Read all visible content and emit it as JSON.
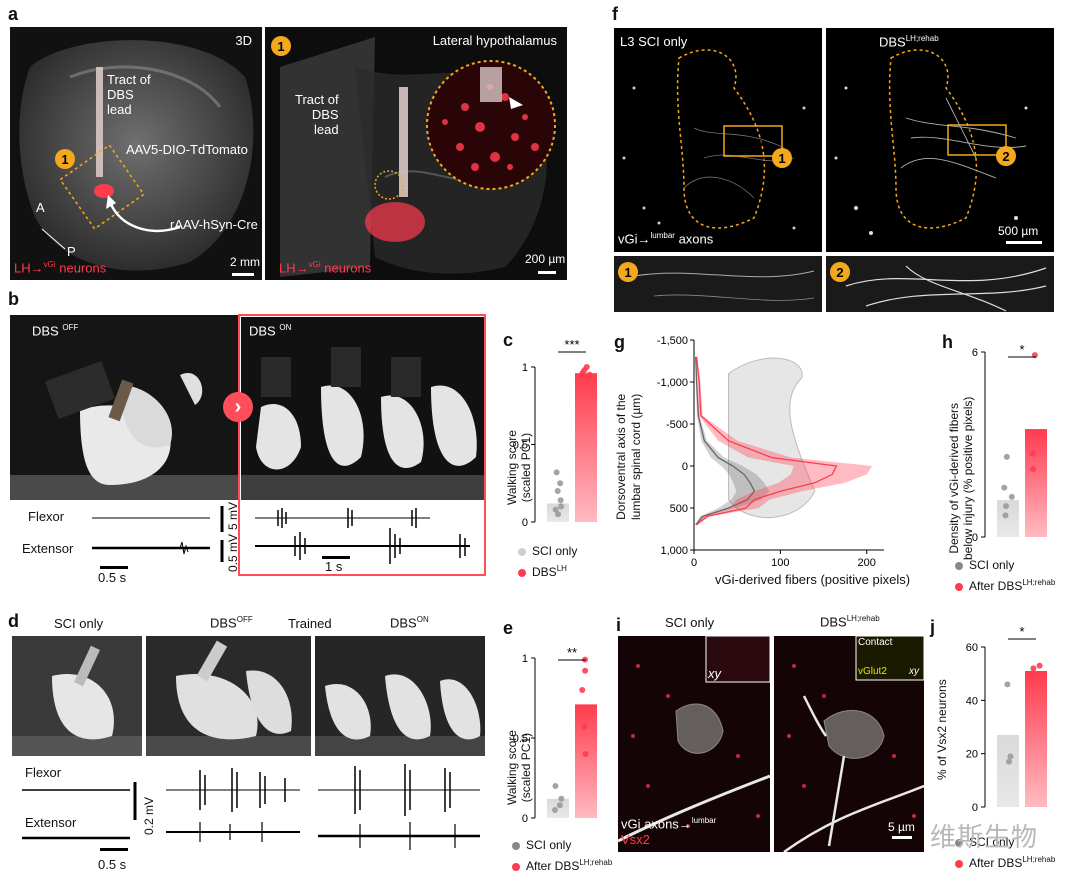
{
  "panels": {
    "a": {
      "letter": "a",
      "left": {
        "label_3d": "3D",
        "tract": "Tract of\nDBS\nlead",
        "aav": "AAV5-DIO-TdTomato",
        "rAAV": "rAAV-hSyn-Cre",
        "axis_a": "A",
        "axis_p": "P",
        "neurons": "LH→",
        "neurons_sup": "vGi",
        "neurons_tail": " neurons",
        "scale": "2 mm",
        "badge": "1"
      },
      "right": {
        "title": "Lateral hypothalamus",
        "tract": "Tract of\nDBS\nlead",
        "neurons": "LH→",
        "neurons_sup": "vGi",
        "neurons_tail": " neurons",
        "scale": "200 µm",
        "badge": "1"
      }
    },
    "b": {
      "letter": "b",
      "dbs_off": "DBS",
      "dbs_off_sup": "OFF",
      "dbs_on": "DBS",
      "dbs_on_sup": "ON",
      "flexor": "Flexor",
      "extensor": "Extensor",
      "scale_t1": "0.5 s",
      "scale_t2": "1 s",
      "scale_v1": "5 mV",
      "scale_v2": "0.5 mV"
    },
    "c": {
      "letter": "c",
      "ylabel": "Walking score\n(scaled PC1)",
      "sig": "***",
      "legend": [
        {
          "label": "SCI only",
          "sup": "",
          "color": "#d0d0d0"
        },
        {
          "label": "DBS",
          "sup": "LH",
          "color": "#ff3b4e"
        }
      ]
    },
    "d": {
      "letter": "d",
      "sci_only": "SCI only",
      "dbs_off": "DBS",
      "dbs_off_sup": "OFF",
      "trained": "Trained",
      "dbs_on": "DBS",
      "dbs_on_sup": "ON",
      "flexor": "Flexor",
      "extensor": "Extensor",
      "scale_t": "0.5 s",
      "scale_v": "0.2 mV"
    },
    "e": {
      "letter": "e",
      "ylabel": "Walking score\n(scaled PC1)",
      "sig": "**",
      "legend": [
        {
          "label": "SCI only",
          "sup": "",
          "color": "#888888"
        },
        {
          "label": "After DBS",
          "sup": "LH;rehab",
          "color": "#ff3b4e"
        }
      ]
    },
    "f": {
      "letter": "f",
      "left_title": "L3  SCI only",
      "right_title": "DBS",
      "right_title_sup": "LH;rehab",
      "axons": "vGi→",
      "axons_sup": "lumbar",
      "axons_tail": " axons",
      "scale": "500 µm",
      "badge1": "1",
      "badge2": "2"
    },
    "g": {
      "letter": "g",
      "ylabel": "Dorsoventral axis of the\nlumbar spinal cord (µm)",
      "xlabel": "vGi-derived fibers (positive pixels)"
    },
    "h": {
      "letter": "h",
      "ylabel": "Density of vGi-derived fibers\nbelow injury (% positive pixels)",
      "sig": "*",
      "legend": [
        {
          "label": "SCI only",
          "sup": "",
          "color": "#888888"
        },
        {
          "label": "After DBS",
          "sup": "LH;rehab",
          "color": "#ff3b4e"
        }
      ]
    },
    "i": {
      "letter": "i",
      "left_title": "SCI only",
      "right_title": "DBS",
      "right_title_sup": "LH;rehab",
      "xy": "xy",
      "contact": "Contact",
      "vglut2": "vGlut2",
      "axons": "vGi axons→",
      "axons_sup": "lumbar",
      "vsx2": "Vsx2",
      "scale": "5 µm"
    },
    "j": {
      "letter": "j",
      "ylabel": "% of Vsx2 neurons",
      "sig": "*",
      "legend": [
        {
          "label": "SCI only",
          "sup": "",
          "color": "#888888"
        },
        {
          "label": "After DBS",
          "sup": "LH;rehab",
          "color": "#ff3b4e"
        }
      ]
    }
  },
  "watermark": "维斯生物",
  "chart_data": [
    {
      "id": "c",
      "type": "bar",
      "categories": [
        "SCI only",
        "DBS LH"
      ],
      "values": [
        0.12,
        0.96
      ],
      "points": [
        [
          0.05,
          0.1,
          0.14,
          0.2,
          0.25,
          0.32,
          0.08
        ],
        [
          0.93,
          0.96,
          0.98,
          1.0,
          0.95
        ]
      ],
      "ylim": [
        0,
        1
      ],
      "yticks": [
        0,
        0.5,
        1
      ],
      "colors": [
        "#d9d9d9",
        "#ff3b4e"
      ]
    },
    {
      "id": "e",
      "type": "bar",
      "categories": [
        "SCI only",
        "After DBS LH;rehab"
      ],
      "values": [
        0.12,
        0.71
      ],
      "points": [
        [
          0.05,
          0.08,
          0.12,
          0.2
        ],
        [
          0.4,
          0.57,
          0.8,
          0.92,
          0.99
        ]
      ],
      "ylim": [
        0,
        1
      ],
      "yticks": [
        0,
        0.5,
        1
      ],
      "colors": [
        "#d9d9d9",
        "#ff3b4e"
      ]
    },
    {
      "id": "h",
      "type": "bar",
      "categories": [
        "SCI only",
        "After DBS LH;rehab"
      ],
      "values": [
        1.2,
        3.5
      ],
      "points": [
        [
          0.7,
          1.0,
          1.3,
          1.6,
          2.6
        ],
        [
          2.2,
          2.7,
          3.4,
          5.9
        ]
      ],
      "ylim": [
        0,
        6
      ],
      "yticks": [
        0,
        6
      ],
      "colors": [
        "#d9d9d9",
        "#ff3b4e"
      ]
    },
    {
      "id": "j",
      "type": "bar",
      "categories": [
        "SCI only",
        "After DBS LH;rehab"
      ],
      "values": [
        27,
        51
      ],
      "points": [
        [
          17,
          19,
          46
        ],
        [
          50,
          52,
          53
        ]
      ],
      "ylim": [
        0,
        60
      ],
      "yticks": [
        0,
        20,
        40,
        60
      ],
      "colors": [
        "#d9d9d9",
        "#ff3b4e"
      ]
    },
    {
      "id": "g",
      "type": "area",
      "xlim": [
        0,
        220
      ],
      "ylim": [
        -1500,
        1000
      ],
      "xticks": [
        0,
        100,
        200
      ],
      "yticks": [
        -1500,
        -1000,
        -500,
        0,
        500,
        1000
      ],
      "series": [
        {
          "name": "SCI only",
          "color": "#666666",
          "y": [
            -1300,
            -1000,
            -600,
            -300,
            -100,
            0,
            100,
            200,
            300,
            400,
            500,
            600,
            700
          ],
          "mean": [
            2,
            3,
            5,
            12,
            28,
            45,
            58,
            65,
            70,
            62,
            40,
            10,
            2
          ]
        },
        {
          "name": "DBS LH;rehab",
          "color": "#ff3b4e",
          "y": [
            -1300,
            -1000,
            -600,
            -300,
            -100,
            0,
            100,
            200,
            300,
            400,
            500,
            600,
            700
          ],
          "mean": [
            3,
            6,
            8,
            40,
            90,
            165,
            160,
            140,
            100,
            70,
            60,
            15,
            3
          ]
        }
      ]
    }
  ]
}
